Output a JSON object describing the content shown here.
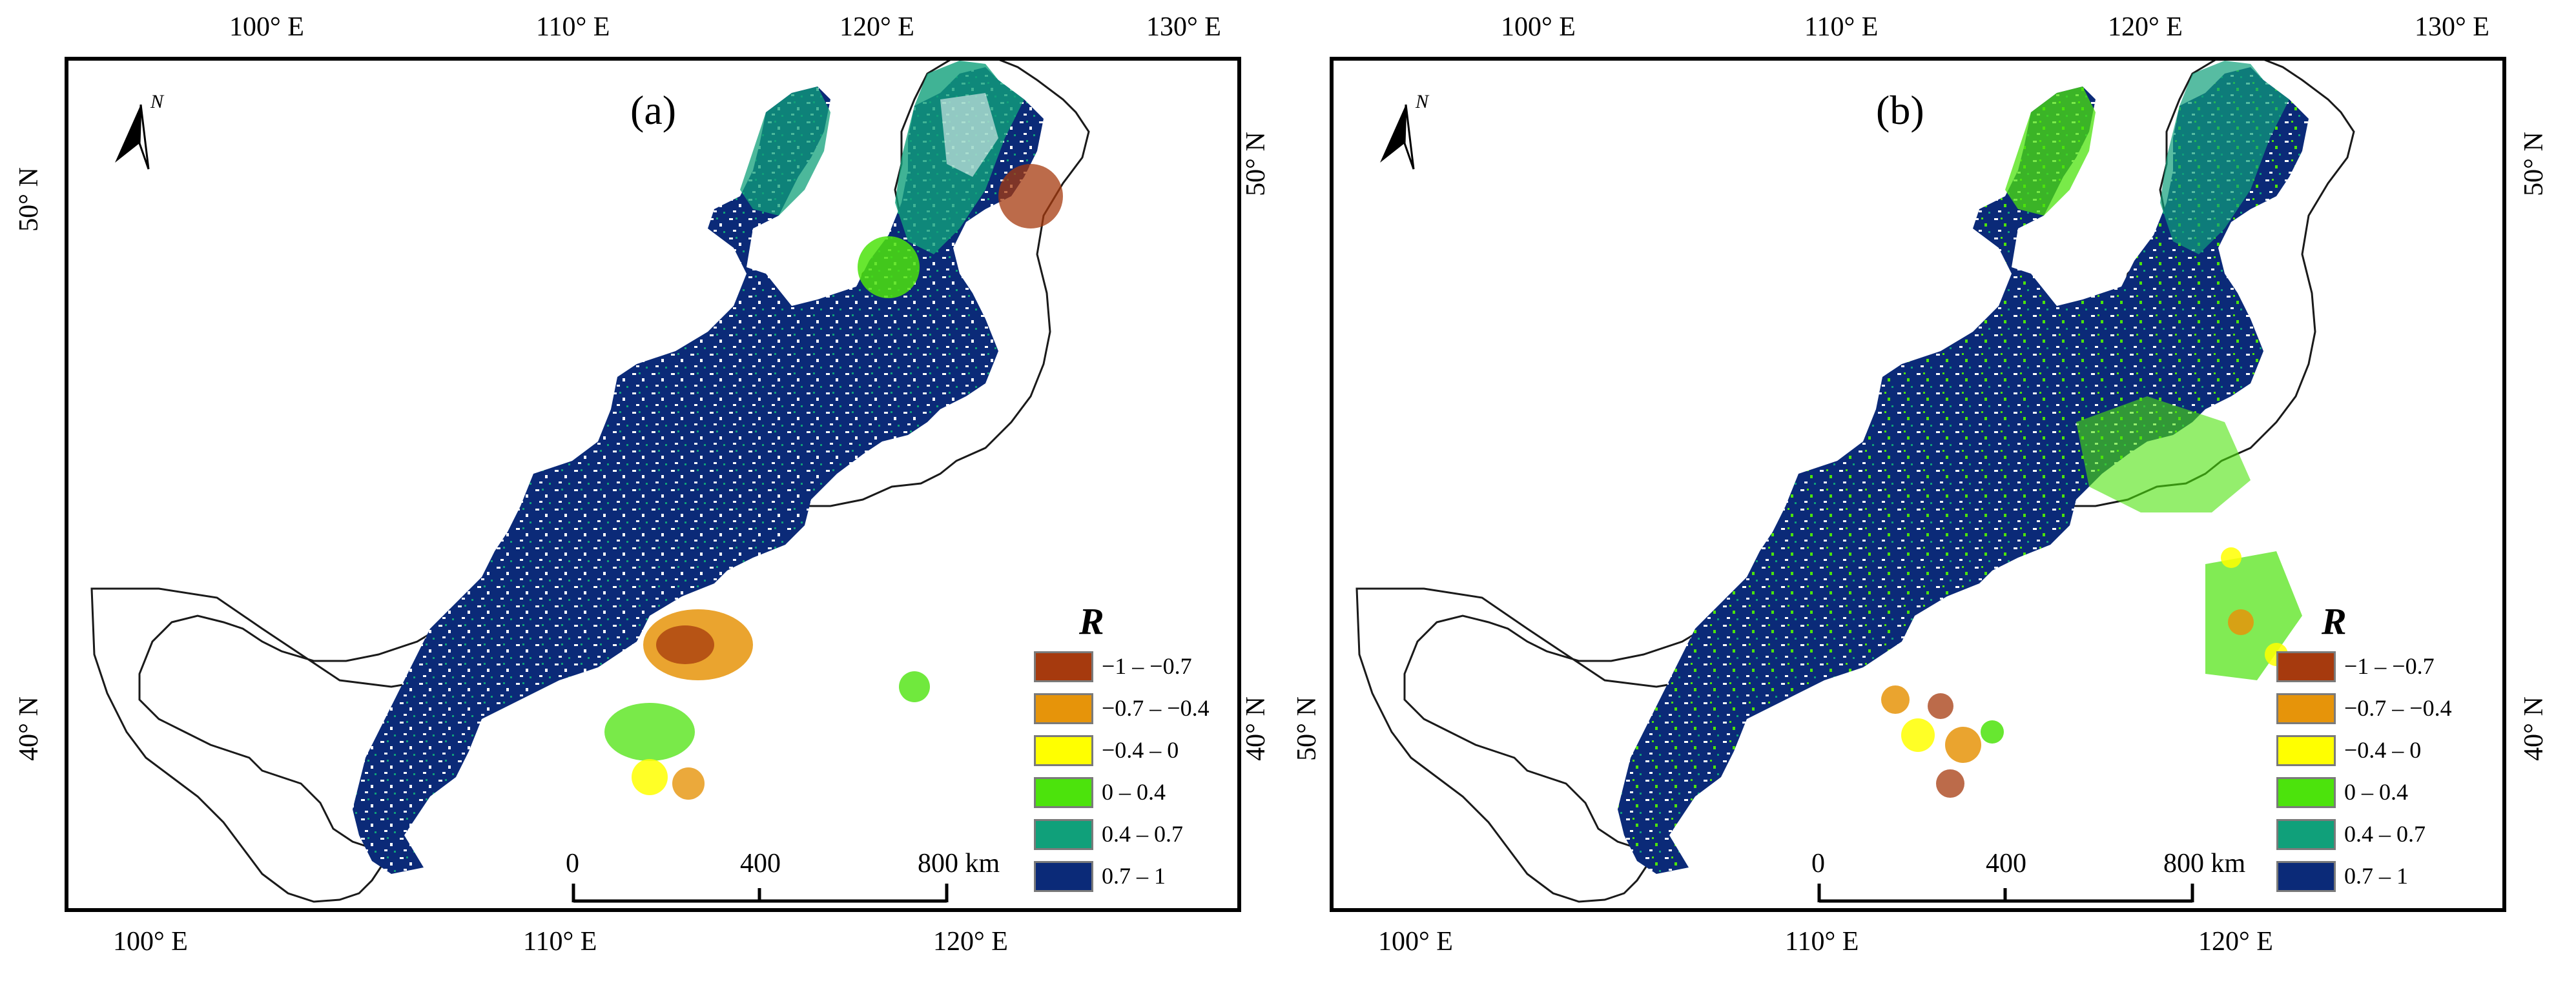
{
  "panels": [
    {
      "label": "(a)",
      "lon_ticks_top": [
        "100° E",
        "110° E",
        "120° E",
        "130° E"
      ],
      "lon_ticks_bottom": [
        "100° E",
        "110° E",
        "120° E"
      ],
      "lat_ticks_left": [
        "50° N",
        "40° N"
      ],
      "lat_ticks_right": [
        "50° N",
        "40° N"
      ],
      "north_label": "N"
    },
    {
      "label": "(b)",
      "lon_ticks_top": [
        "100° E",
        "110° E",
        "120° E",
        "130° E"
      ],
      "lon_ticks_bottom": [
        "100° E",
        "110° E",
        "120° E"
      ],
      "lat_ticks_left": [
        "50° N",
        "40° N"
      ],
      "lat_ticks_right": [
        "50° N",
        "40° N"
      ],
      "north_label": "N"
    }
  ],
  "legend": {
    "title": "R",
    "items": [
      {
        "label": "−1 – −0.7",
        "color": "#a63a0e"
      },
      {
        "label": "−0.7 – −0.4",
        "color": "#e6940a"
      },
      {
        "label": "−0.4 – 0",
        "color": "#ffff00"
      },
      {
        "label": "0 – 0.4",
        "color": "#4ce30c"
      },
      {
        "label": "0.4 – 0.7",
        "color": "#10a07a"
      },
      {
        "label": "0.7 – 1",
        "color": "#0b2a78"
      }
    ]
  },
  "scalebar": {
    "labels": [
      "0",
      "400",
      "800  km"
    ]
  }
}
